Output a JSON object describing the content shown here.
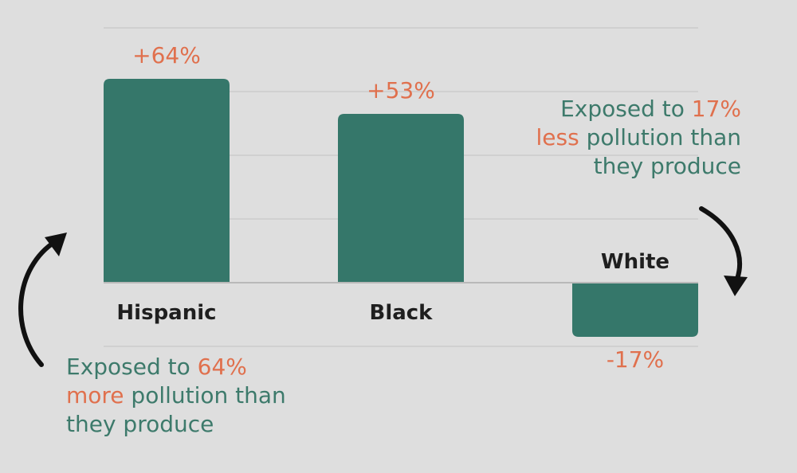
{
  "colors": {
    "bar": "#35776a",
    "value_label": "#e0704d",
    "category_label": "#1f1f1f",
    "annotation_text": "#3d7a6b",
    "annotation_accent": "#e0704d",
    "gridline": "#cbcbcb",
    "baseline": "#b9b9b9",
    "arrow": "#111111",
    "background": "#dedede"
  },
  "chart_data": {
    "type": "bar",
    "categories": [
      "Hispanic",
      "Black",
      "White"
    ],
    "values": [
      64,
      53,
      -17
    ],
    "value_labels": [
      "+64%",
      "+53%",
      "-17%"
    ],
    "ylim": [
      -20,
      80
    ],
    "grid": true,
    "xlabel": "",
    "ylabel": ""
  },
  "annotations": {
    "left": {
      "line1_a": "Exposed to ",
      "line1_b": "64%",
      "line2_a": "more",
      "line2_b": " pollution than",
      "line3": "they produce"
    },
    "right": {
      "line1_a": "Exposed to ",
      "line1_b": "17%",
      "line2_a": "less",
      "line2_b": " pollution than",
      "line3": "they produce"
    }
  }
}
